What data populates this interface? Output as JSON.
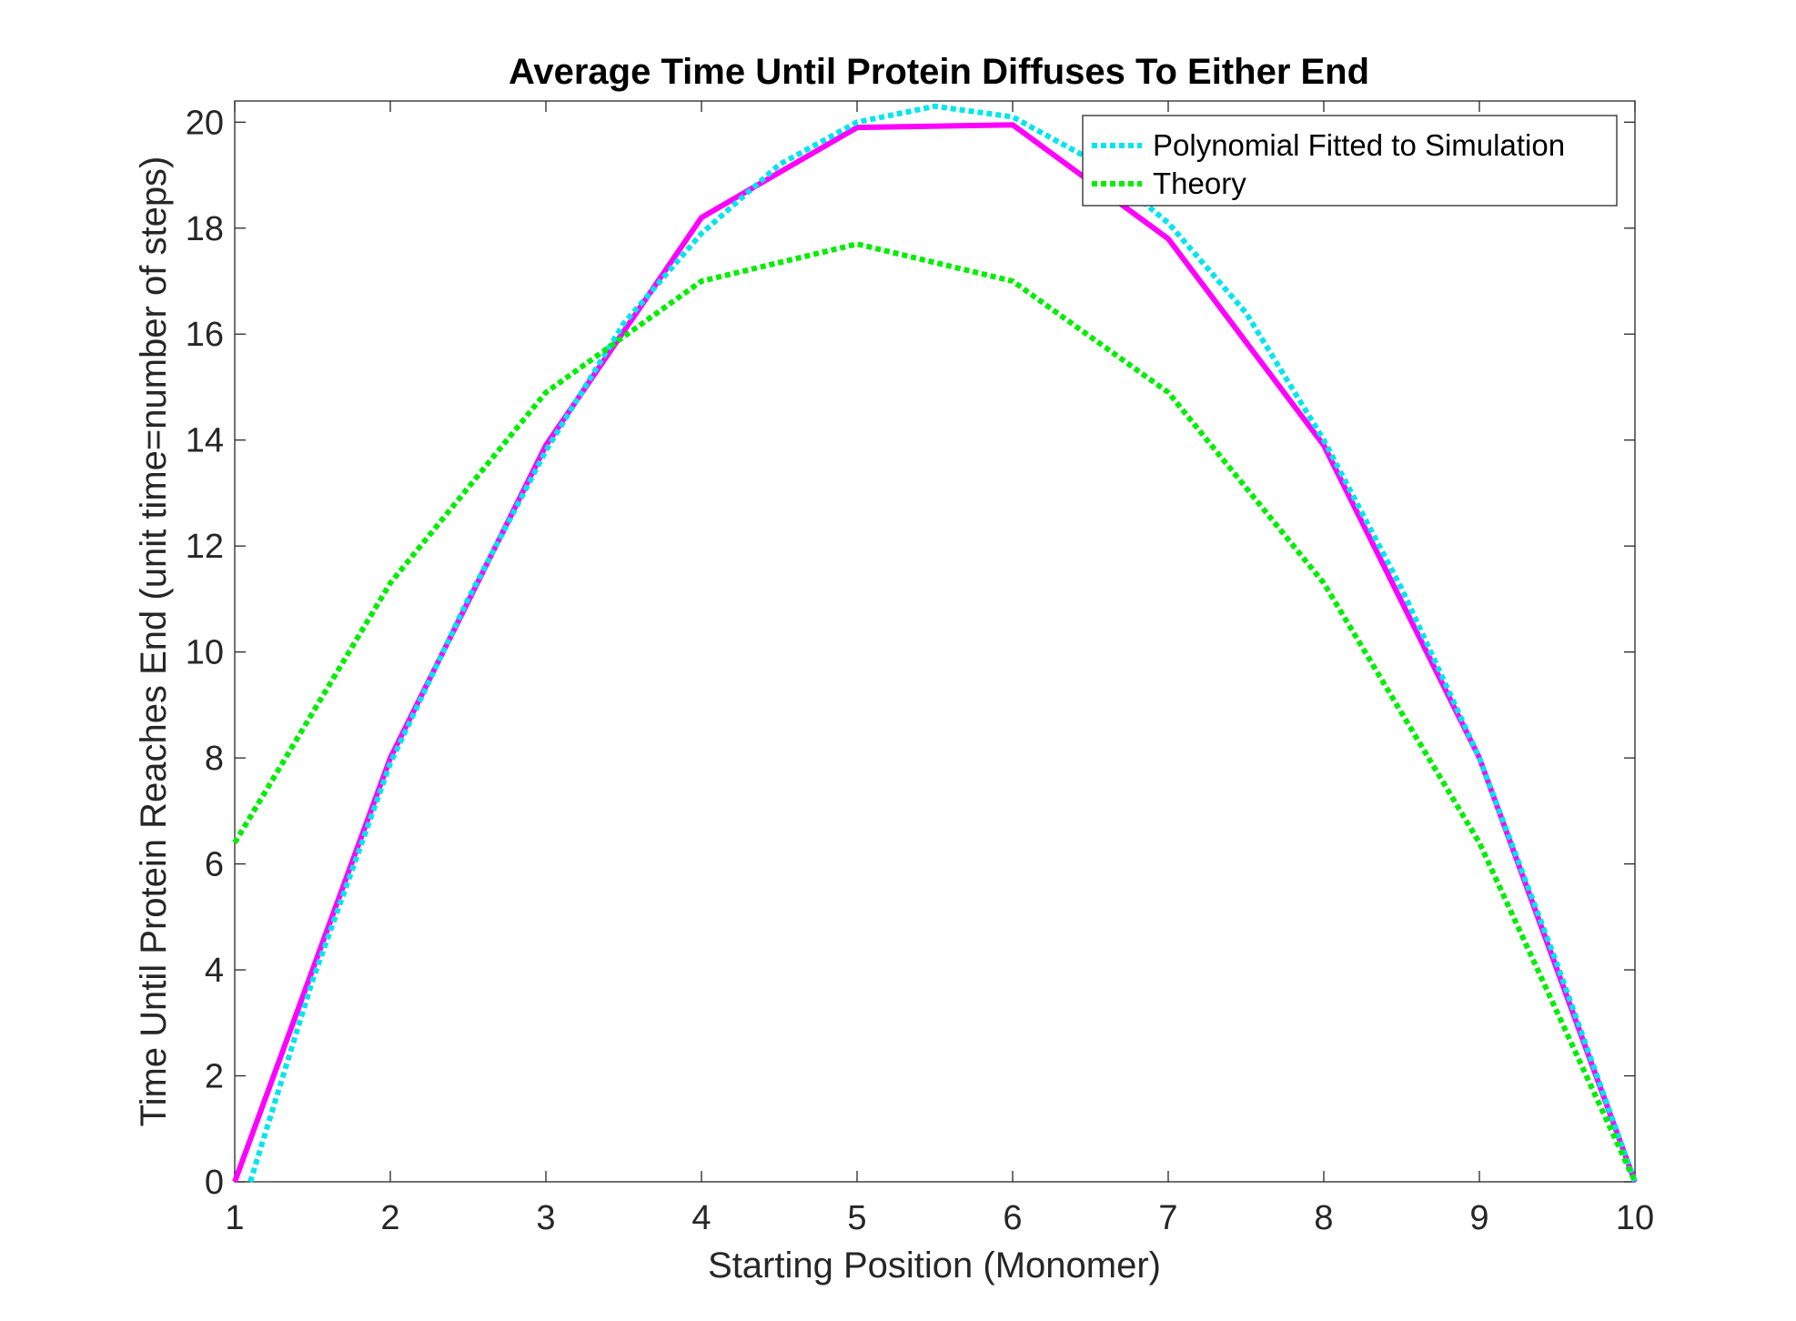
{
  "chart_data": {
    "type": "line",
    "title": "Average Time Until Protein Diffuses To Either End",
    "xlabel": "Starting Position (Monomer)",
    "ylabel": "Time Until Protein Reaches End (unit time=number of steps)",
    "xlim": [
      1,
      10
    ],
    "ylim": [
      0,
      20.4
    ],
    "xticks": [
      "1",
      "2",
      "3",
      "4",
      "5",
      "6",
      "7",
      "8",
      "9",
      "10"
    ],
    "yticks": [
      "0",
      "2",
      "4",
      "6",
      "8",
      "10",
      "12",
      "14",
      "16",
      "18",
      "20"
    ],
    "grid": false,
    "legend_position": "top-right",
    "series": [
      {
        "color": "#ff00ff",
        "dash": "solid",
        "x": [
          1,
          2,
          3,
          4,
          5,
          6,
          7,
          8,
          9,
          10
        ],
        "y": [
          0,
          8.0,
          13.9,
          18.2,
          19.9,
          19.95,
          17.8,
          13.9,
          8.0,
          0
        ]
      },
      {
        "name": "Polynomial Fitted to Simulation",
        "color": "#00e5ee",
        "dash": "dotted",
        "x": [
          1.1,
          1.5,
          2,
          2.5,
          3,
          3.5,
          4,
          4.5,
          5,
          5.5,
          6,
          6.5,
          7,
          7.5,
          8,
          8.5,
          9,
          9.5,
          10
        ],
        "y": [
          0,
          3.8,
          7.9,
          11.0,
          13.8,
          16.2,
          17.9,
          19.2,
          20.0,
          20.3,
          20.1,
          19.3,
          18.1,
          16.4,
          14.0,
          11.2,
          8.0,
          4.1,
          0
        ]
      },
      {
        "name": "Theory",
        "color": "#00ee00",
        "dash": "dotted",
        "x": [
          1,
          2,
          3,
          4,
          5,
          6,
          7,
          8,
          9,
          10
        ],
        "y": [
          6.4,
          11.3,
          14.9,
          17.0,
          17.7,
          17.0,
          14.9,
          11.3,
          6.4,
          0
        ]
      }
    ]
  }
}
